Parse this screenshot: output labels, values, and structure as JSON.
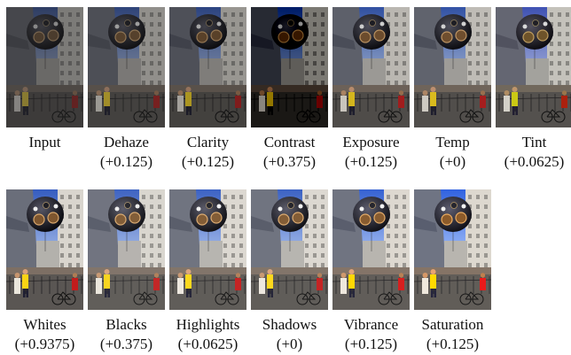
{
  "figure": {
    "rows": [
      [
        {
          "name": "Input",
          "value": "",
          "tone": {
            "brightness": 0.62,
            "contrast": 0.95,
            "saturate": 0.8,
            "hue": 0
          }
        },
        {
          "name": "Dehaze",
          "value": "(+0.125)",
          "tone": {
            "brightness": 0.72,
            "contrast": 1.0,
            "saturate": 0.9,
            "hue": 0
          }
        },
        {
          "name": "Clarity",
          "value": "(+0.125)",
          "tone": {
            "brightness": 0.75,
            "contrast": 1.05,
            "saturate": 0.95,
            "hue": 0
          }
        },
        {
          "name": "Contrast",
          "value": "(+0.375)",
          "tone": {
            "brightness": 0.62,
            "contrast": 1.45,
            "saturate": 1.05,
            "hue": 0
          }
        },
        {
          "name": "Exposure",
          "value": "(+0.125)",
          "tone": {
            "brightness": 0.9,
            "contrast": 1.1,
            "saturate": 1.0,
            "hue": 0
          }
        },
        {
          "name": "Temp",
          "value": "(+0)",
          "tone": {
            "brightness": 0.92,
            "contrast": 1.1,
            "saturate": 1.0,
            "hue": 0
          }
        },
        {
          "name": "Tint",
          "value": "(+0.0625)",
          "tone": {
            "brightness": 0.95,
            "contrast": 1.1,
            "saturate": 1.05,
            "hue": 8
          }
        }
      ],
      [
        {
          "name": "Whites",
          "value": "(+0.9375)",
          "tone": {
            "brightness": 1.02,
            "contrast": 1.15,
            "saturate": 1.05,
            "hue": 0
          }
        },
        {
          "name": "Blacks",
          "value": "(+0.375)",
          "tone": {
            "brightness": 1.06,
            "contrast": 1.05,
            "saturate": 1.05,
            "hue": 0
          }
        },
        {
          "name": "Highlights",
          "value": "(+0.0625)",
          "tone": {
            "brightness": 1.06,
            "contrast": 1.08,
            "saturate": 1.05,
            "hue": 0
          }
        },
        {
          "name": "Shadows",
          "value": "(+0)",
          "tone": {
            "brightness": 1.06,
            "contrast": 1.08,
            "saturate": 1.05,
            "hue": 0
          }
        },
        {
          "name": "Vibrance",
          "value": "(+0.125)",
          "tone": {
            "brightness": 1.06,
            "contrast": 1.08,
            "saturate": 1.2,
            "hue": 0
          }
        },
        {
          "name": "Saturation",
          "value": "(+0.125)",
          "tone": {
            "brightness": 1.06,
            "contrast": 1.08,
            "saturate": 1.35,
            "hue": 0
          }
        }
      ]
    ]
  }
}
